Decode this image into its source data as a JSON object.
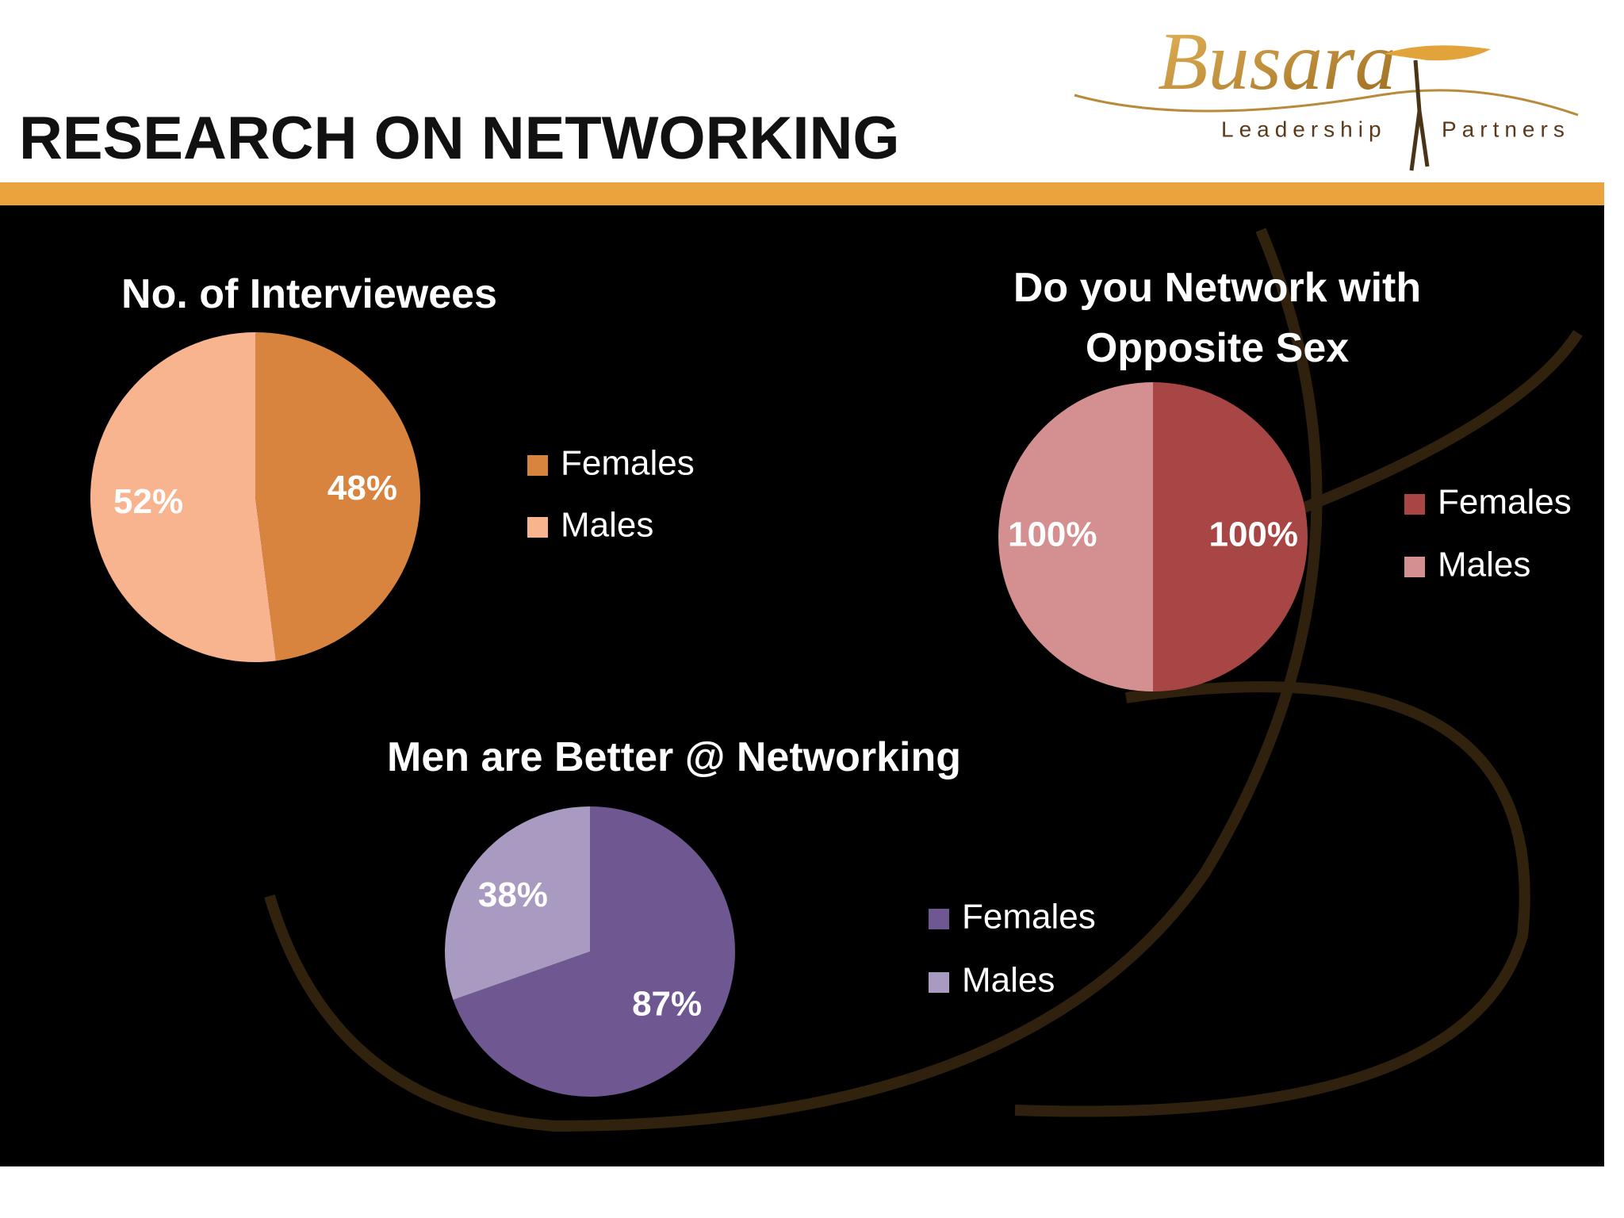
{
  "header": {
    "title": "RESEARCH ON NETWORKING",
    "logo": {
      "name": "Busara",
      "tagline": [
        "Leadership",
        "Partners"
      ]
    }
  },
  "chart_data": [
    {
      "type": "pie",
      "title": "No. of Interviewees",
      "categories": [
        "Females",
        "Males"
      ],
      "values": [
        48,
        52
      ],
      "value_labels": [
        "48%",
        "52%"
      ],
      "colors": [
        "#d9843e",
        "#f8b38f"
      ]
    },
    {
      "type": "pie",
      "title": "Do you Network with Opposite Sex",
      "categories": [
        "Females",
        "Males"
      ],
      "values": [
        100,
        100
      ],
      "value_labels": [
        "100%",
        "100%"
      ],
      "colors": [
        "#a84545",
        "#d49090"
      ]
    },
    {
      "type": "pie",
      "title": "Men are Better @ Networking",
      "categories": [
        "Females",
        "Males"
      ],
      "values": [
        87,
        38
      ],
      "value_labels": [
        "87%",
        "38%"
      ],
      "colors": [
        "#6f5791",
        "#a89ac0"
      ]
    }
  ]
}
